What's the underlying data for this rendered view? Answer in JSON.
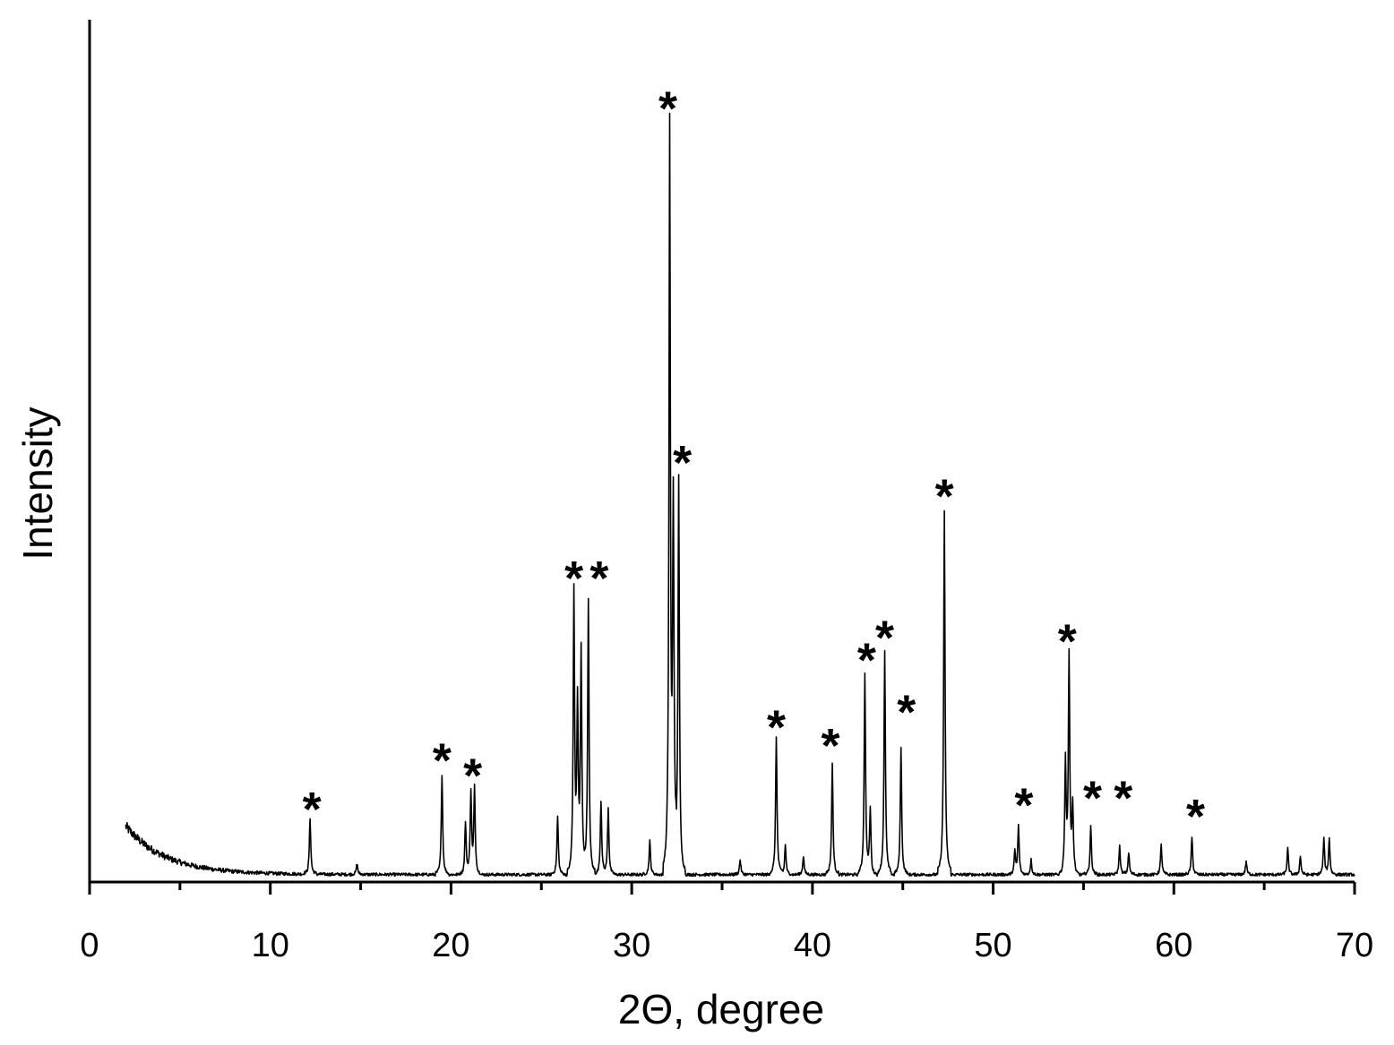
{
  "chart_data": {
    "type": "line",
    "title": "",
    "xlabel": "2Θ, degree",
    "ylabel": "Intensity",
    "xlim": [
      0,
      70
    ],
    "ylim": [
      0,
      1000
    ],
    "x_ticks": [
      "0",
      "10",
      "20",
      "30",
      "40",
      "50",
      "60",
      "70"
    ],
    "grid": false,
    "legend": "none",
    "line_color": "#000000",
    "background": {
      "start": 2.0,
      "end": 70.0,
      "base": 10,
      "rise": 65,
      "decay": 2.2
    },
    "series": [
      {
        "peaks": [
          {
            "x": 12.2,
            "y": 75
          },
          {
            "x": 14.8,
            "y": 15
          },
          {
            "x": 19.5,
            "y": 135
          },
          {
            "x": 20.8,
            "y": 70
          },
          {
            "x": 21.1,
            "y": 110
          },
          {
            "x": 21.3,
            "y": 115
          },
          {
            "x": 25.9,
            "y": 78
          },
          {
            "x": 26.8,
            "y": 380
          },
          {
            "x": 27.0,
            "y": 220
          },
          {
            "x": 27.2,
            "y": 300
          },
          {
            "x": 27.6,
            "y": 370
          },
          {
            "x": 28.3,
            "y": 100
          },
          {
            "x": 28.7,
            "y": 90
          },
          {
            "x": 31.0,
            "y": 45
          },
          {
            "x": 32.1,
            "y": 998
          },
          {
            "x": 32.3,
            "y": 475
          },
          {
            "x": 32.6,
            "y": 525
          },
          {
            "x": 36.0,
            "y": 20
          },
          {
            "x": 38.0,
            "y": 185
          },
          {
            "x": 38.5,
            "y": 40
          },
          {
            "x": 39.5,
            "y": 25
          },
          {
            "x": 41.1,
            "y": 148
          },
          {
            "x": 42.9,
            "y": 270
          },
          {
            "x": 43.2,
            "y": 85
          },
          {
            "x": 44.0,
            "y": 300
          },
          {
            "x": 44.9,
            "y": 170
          },
          {
            "x": 47.3,
            "y": 488
          },
          {
            "x": 51.2,
            "y": 30
          },
          {
            "x": 51.4,
            "y": 65
          },
          {
            "x": 52.1,
            "y": 20
          },
          {
            "x": 54.0,
            "y": 150
          },
          {
            "x": 54.2,
            "y": 292
          },
          {
            "x": 54.4,
            "y": 90
          },
          {
            "x": 55.4,
            "y": 65
          },
          {
            "x": 57.0,
            "y": 38
          },
          {
            "x": 57.5,
            "y": 30
          },
          {
            "x": 59.3,
            "y": 40
          },
          {
            "x": 61.0,
            "y": 50
          },
          {
            "x": 64.0,
            "y": 18
          },
          {
            "x": 66.3,
            "y": 35
          },
          {
            "x": 67.0,
            "y": 25
          },
          {
            "x": 68.3,
            "y": 48
          },
          {
            "x": 68.6,
            "y": 48
          }
        ]
      }
    ],
    "annotations": [
      {
        "text": "*",
        "x": 12.3,
        "y": 100
      },
      {
        "text": "*",
        "x": 19.5,
        "y": 165
      },
      {
        "text": "*",
        "x": 21.2,
        "y": 145
      },
      {
        "text": "*",
        "x": 26.8,
        "y": 410
      },
      {
        "text": "*",
        "x": 28.2,
        "y": 410
      },
      {
        "text": "*",
        "x": 32.0,
        "y": 1040
      },
      {
        "text": "*",
        "x": 32.8,
        "y": 565
      },
      {
        "text": "*",
        "x": 38.0,
        "y": 210
      },
      {
        "text": "*",
        "x": 41.0,
        "y": 185
      },
      {
        "text": "*",
        "x": 43.0,
        "y": 300
      },
      {
        "text": "*",
        "x": 44.0,
        "y": 330
      },
      {
        "text": "*",
        "x": 45.2,
        "y": 230
      },
      {
        "text": "*",
        "x": 47.3,
        "y": 520
      },
      {
        "text": "*",
        "x": 51.7,
        "y": 105
      },
      {
        "text": "*",
        "x": 54.1,
        "y": 325
      },
      {
        "text": "*",
        "x": 55.5,
        "y": 115
      },
      {
        "text": "*",
        "x": 57.2,
        "y": 115
      },
      {
        "text": "*",
        "x": 61.2,
        "y": 90
      }
    ]
  }
}
